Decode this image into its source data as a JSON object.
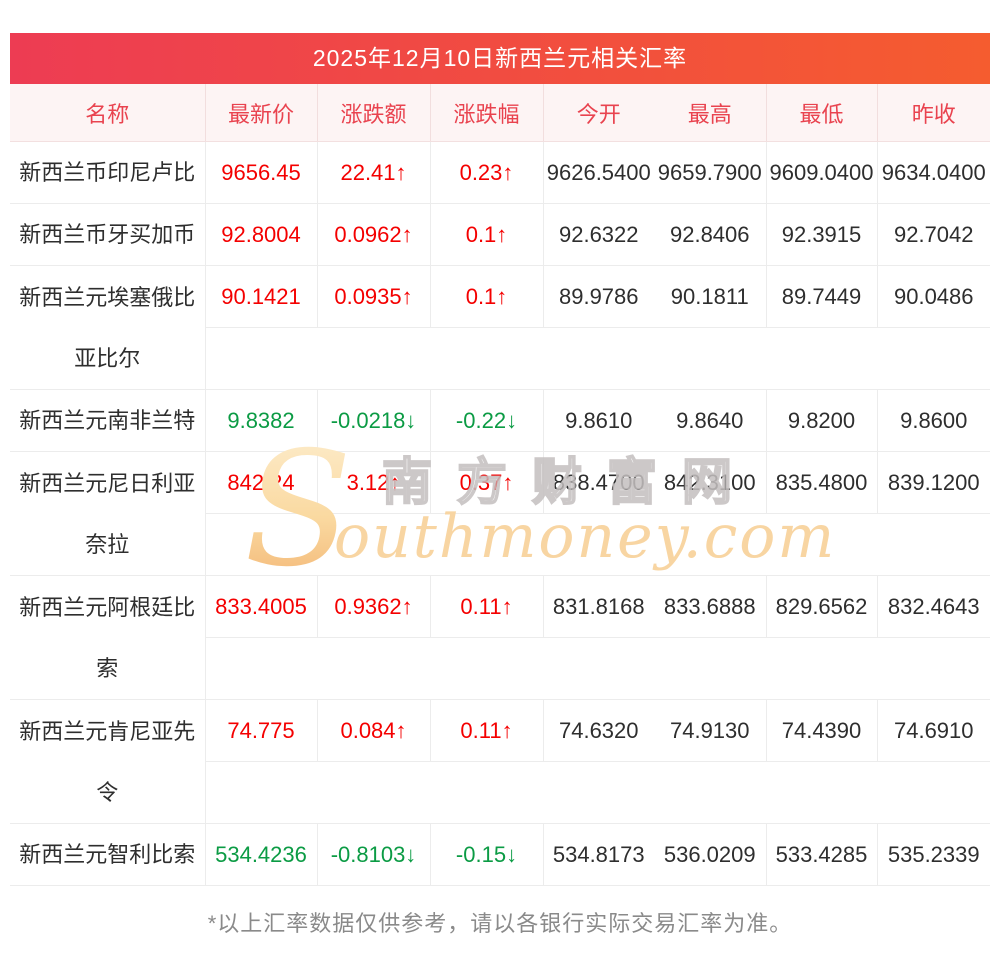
{
  "page": {
    "title": "2025年12月10日新西兰元相关汇率",
    "footnote": "*以上汇率数据仅供参考，请以各银行实际交易汇率为准。"
  },
  "watermark": {
    "s": "S",
    "cn": "南方财富网",
    "en": "outhmoney.com"
  },
  "colors": {
    "up_red": "#f40000",
    "down_green": "#0b9b44",
    "title_gradient_start": "#ed3c53",
    "title_gradient_end": "#f55c2f",
    "header_bg": "#fdf4f4",
    "header_text": "#e9434f"
  },
  "table": {
    "columns": [
      {
        "key": "name",
        "label": "名称"
      },
      {
        "key": "latest",
        "label": "最新价"
      },
      {
        "key": "change",
        "label": "涨跌额"
      },
      {
        "key": "change_pct",
        "label": "涨跌幅"
      },
      {
        "key": "open",
        "label": "今开"
      },
      {
        "key": "high",
        "label": "最高"
      },
      {
        "key": "low",
        "label": "最低"
      },
      {
        "key": "prev_close",
        "label": "昨收"
      }
    ],
    "rows": [
      {
        "name": "新西兰币印尼卢比",
        "latest": "9656.45",
        "change": "22.41↑",
        "change_pct": "0.23↑",
        "open": "9626.5400",
        "high": "9659.7900",
        "low": "9609.0400",
        "prev_close": "9634.0400",
        "trend": "up",
        "two_line": false
      },
      {
        "name": "新西兰币牙买加币",
        "latest": "92.8004",
        "change": "0.0962↑",
        "change_pct": "0.1↑",
        "open": "92.6322",
        "high": "92.8406",
        "low": "92.3915",
        "prev_close": "92.7042",
        "trend": "up",
        "two_line": false
      },
      {
        "name": "新西兰元埃塞俄比亚比尔",
        "latest": "90.1421",
        "change": "0.0935↑",
        "change_pct": "0.1↑",
        "open": "89.9786",
        "high": "90.1811",
        "low": "89.7449",
        "prev_close": "90.0486",
        "trend": "up",
        "two_line": true
      },
      {
        "name": "新西兰元南非兰特",
        "latest": "9.8382",
        "change": "-0.0218↓",
        "change_pct": "-0.22↓",
        "open": "9.8610",
        "high": "9.8640",
        "low": "9.8200",
        "prev_close": "9.8600",
        "trend": "down",
        "two_line": false
      },
      {
        "name": "新西兰元尼日利亚奈拉",
        "latest": "842.24",
        "change": "3.12↑",
        "change_pct": "0.37↑",
        "open": "838.4700",
        "high": "842.3100",
        "low": "835.4800",
        "prev_close": "839.1200",
        "trend": "up",
        "two_line": true
      },
      {
        "name": "新西兰元阿根廷比索",
        "latest": "833.4005",
        "change": "0.9362↑",
        "change_pct": "0.11↑",
        "open": "831.8168",
        "high": "833.6888",
        "low": "829.6562",
        "prev_close": "832.4643",
        "trend": "up",
        "two_line": true
      },
      {
        "name": "新西兰元肯尼亚先令",
        "latest": "74.775",
        "change": "0.084↑",
        "change_pct": "0.11↑",
        "open": "74.6320",
        "high": "74.9130",
        "low": "74.4390",
        "prev_close": "74.6910",
        "trend": "up",
        "two_line": true
      },
      {
        "name": "新西兰元智利比索",
        "latest": "534.4236",
        "change": "-0.8103↓",
        "change_pct": "-0.15↓",
        "open": "534.8173",
        "high": "536.0209",
        "low": "533.4285",
        "prev_close": "535.2339",
        "trend": "down",
        "two_line": false
      }
    ]
  }
}
